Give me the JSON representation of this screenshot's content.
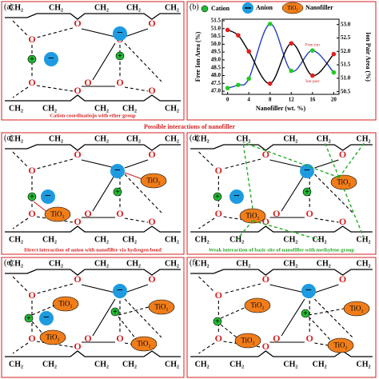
{
  "section_title": "Possible interactions of nanofiller",
  "atoms": {
    "methylene": "CH₂",
    "oxygen": "O",
    "nanofiller": "TiO₂",
    "cation_sign": "+",
    "anion_sign": "−"
  },
  "legend": {
    "cation": "Cation",
    "anion": "Anion",
    "nanofiller_shape": "TiO₂",
    "nanofiller": "Nanofiller"
  },
  "panels": [
    {
      "label": "(a)",
      "caption": "Cation coordinatiojn with ether group"
    },
    {
      "label": "(c)",
      "caption": "Direct interaction of anion with nanofiller via hydrogen bond"
    },
    {
      "label": "(d)",
      "caption": "Weak interaction of basic site of nanofiller with methylene group"
    },
    {
      "label": "(e)"
    },
    {
      "label": "(f)"
    }
  ],
  "chart_data": {
    "type": "line",
    "label": "(b)",
    "x_label": "Nanofiller (wt. %)",
    "y_label": "Free Ion Area (%)",
    "y2_label": "Ion Pair Area (%)",
    "x": [
      0,
      2,
      4,
      8,
      12,
      16,
      20
    ],
    "xlim": [
      -1,
      21
    ],
    "xticks": [
      0,
      4,
      8,
      12,
      16,
      20
    ],
    "ylim": [
      46.8,
      51.6
    ],
    "yticks": [
      {
        "value": 47,
        "label": "47.0"
      },
      47.5,
      {
        "value": 48,
        "label": "48.0"
      },
      48.5,
      {
        "value": 49,
        "label": "49.0"
      },
      49.5,
      {
        "value": 50,
        "label": "50.0"
      },
      50.5,
      {
        "value": 51,
        "label": "51.0"
      },
      51.5
    ],
    "y2lim": [
      50.4,
      53.2
    ],
    "y2ticks": [
      50.5,
      {
        "value": 51,
        "label": "51.0"
      },
      51.5,
      {
        "value": 52,
        "label": "52.0"
      },
      52.5,
      {
        "value": 53,
        "label": "53.0"
      }
    ],
    "series": [
      {
        "name": "Free ion",
        "color": "#1f3fbf",
        "marker_color": "#22cc22",
        "values": [
          47.2,
          47.4,
          47.8,
          51.3,
          48.3,
          49.6,
          48.2
        ]
      },
      {
        "name": "Ion pair",
        "color": "#000000",
        "marker_color": "#e02020",
        "axis": "y2",
        "values": [
          52.8,
          52.6,
          52.0,
          50.8,
          52.3,
          51.1,
          51.9
        ]
      }
    ]
  }
}
